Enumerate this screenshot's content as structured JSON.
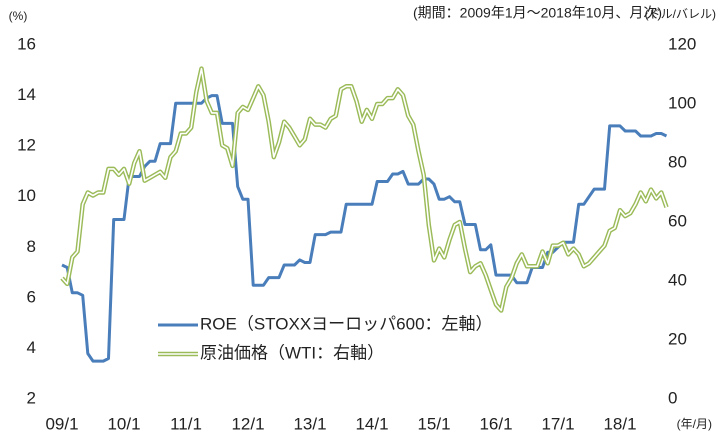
{
  "chart_data": {
    "type": "line",
    "period_note": "(期間：2009年1月～2018年10月、月次)",
    "y_unit": "(%)",
    "y2_unit": "(ドル/バレル)",
    "x_unit": "(年/月)",
    "categories": [
      "09/1",
      null,
      null,
      null,
      null,
      null,
      null,
      null,
      null,
      null,
      null,
      null,
      "10/1",
      null,
      null,
      null,
      null,
      null,
      null,
      null,
      null,
      null,
      null,
      null,
      "11/1",
      null,
      null,
      null,
      null,
      null,
      null,
      null,
      null,
      null,
      null,
      null,
      "12/1",
      null,
      null,
      null,
      null,
      null,
      null,
      null,
      null,
      null,
      null,
      null,
      "13/1",
      null,
      null,
      null,
      null,
      null,
      null,
      null,
      null,
      null,
      null,
      null,
      "14/1",
      null,
      null,
      null,
      null,
      null,
      null,
      null,
      null,
      null,
      null,
      null,
      "15/1",
      null,
      null,
      null,
      null,
      null,
      null,
      null,
      null,
      null,
      null,
      null,
      "16/1",
      null,
      null,
      null,
      null,
      null,
      null,
      null,
      null,
      null,
      null,
      null,
      "17/1",
      null,
      null,
      null,
      null,
      null,
      null,
      null,
      null,
      null,
      null,
      null,
      "18/1",
      null,
      null,
      null,
      null,
      null,
      null,
      null,
      null,
      null
    ],
    "series": [
      {
        "name": "ROE（STOXXヨーロッパ600：左軸）",
        "color": "#4a7ebb",
        "axis": "y",
        "style": "solid",
        "values": [
          7.3,
          7.2,
          6.2,
          6.2,
          6.1,
          3.8,
          3.5,
          3.5,
          3.5,
          3.6,
          9.1,
          9.1,
          9.1,
          10.8,
          10.8,
          10.8,
          11.2,
          11.4,
          11.4,
          12.1,
          12.1,
          12.1,
          13.7,
          13.7,
          13.7,
          13.7,
          13.7,
          13.7,
          13.9,
          14.0,
          14.0,
          12.9,
          12.9,
          12.9,
          10.4,
          9.9,
          9.9,
          6.5,
          6.5,
          6.5,
          6.8,
          6.8,
          6.8,
          7.3,
          7.3,
          7.3,
          7.5,
          7.4,
          7.4,
          8.5,
          8.5,
          8.5,
          8.6,
          8.6,
          8.6,
          9.7,
          9.7,
          9.7,
          9.7,
          9.7,
          9.7,
          10.6,
          10.6,
          10.6,
          10.9,
          10.9,
          11.0,
          10.5,
          10.5,
          10.5,
          10.7,
          10.7,
          10.5,
          9.9,
          9.9,
          10.0,
          9.8,
          9.8,
          8.9,
          8.9,
          8.9,
          7.9,
          7.9,
          8.1,
          6.9,
          6.9,
          6.9,
          6.9,
          6.6,
          6.6,
          6.6,
          7.2,
          7.2,
          7.2,
          7.8,
          7.8,
          8.0,
          8.2,
          8.2,
          8.2,
          9.7,
          9.7,
          10.0,
          10.3,
          10.3,
          10.3,
          12.8,
          12.8,
          12.8,
          12.6,
          12.6,
          12.6,
          12.4,
          12.4,
          12.4,
          12.5,
          12.5,
          12.4
        ]
      },
      {
        "name": "原油価格（WTI：右軸）",
        "color": "#9bbb59",
        "axis": "y2",
        "style": "double",
        "values": [
          41,
          39,
          48,
          50,
          66,
          70,
          69,
          70,
          70,
          78,
          78,
          76,
          78,
          73,
          80,
          84,
          74,
          75,
          76,
          77,
          75,
          82,
          84,
          90,
          90,
          92,
          104,
          112,
          101,
          97,
          97,
          86,
          85,
          79,
          97,
          99,
          98,
          102,
          106,
          103,
          94,
          82,
          87,
          94,
          92,
          89,
          86,
          88,
          95,
          93,
          93,
          92,
          95,
          96,
          105,
          106,
          106,
          101,
          94,
          98,
          95,
          100,
          100,
          102,
          102,
          105,
          103,
          96,
          93,
          84,
          76,
          59,
          47,
          51,
          48,
          54,
          59,
          60,
          51,
          43,
          45,
          46,
          42,
          37,
          32,
          30,
          38,
          41,
          46,
          49,
          45,
          45,
          45,
          50,
          46,
          52,
          52,
          53,
          49,
          51,
          49,
          45,
          46,
          48,
          50,
          52,
          57,
          58,
          64,
          62,
          63,
          66,
          70,
          67,
          71,
          68,
          70,
          65
        ]
      }
    ],
    "ylim": [
      2,
      16
    ],
    "yticks": [
      2,
      4,
      6,
      8,
      10,
      12,
      14,
      16
    ],
    "y2lim": [
      0,
      120
    ],
    "y2ticks": [
      0,
      20,
      40,
      60,
      80,
      100,
      120
    ]
  }
}
